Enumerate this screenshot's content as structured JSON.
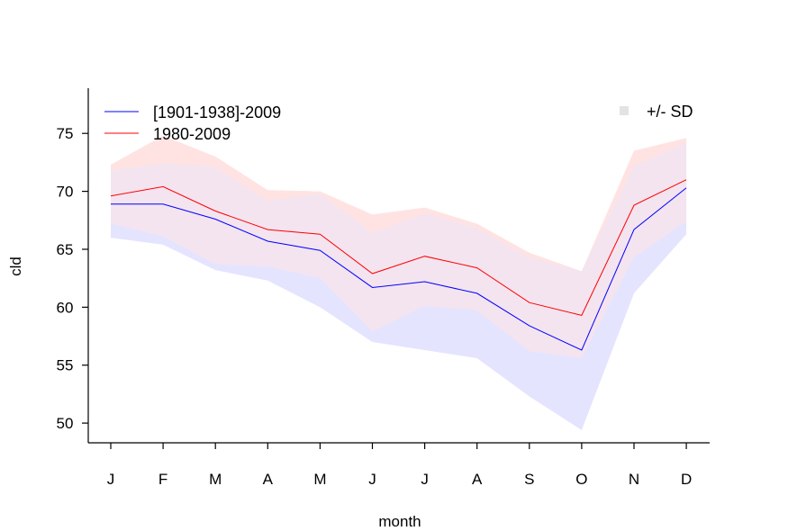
{
  "chart_data": {
    "type": "line",
    "title": "",
    "xlabel": "month",
    "ylabel": "cld",
    "categories": [
      "J",
      "F",
      "M",
      "A",
      "M",
      "J",
      "J",
      "A",
      "S",
      "O",
      "N",
      "D"
    ],
    "ylim": [
      48.3,
      78.9
    ],
    "yticks": [
      50,
      55,
      60,
      65,
      70,
      75
    ],
    "grid": false,
    "series": [
      {
        "name": "[1901-1938]-2009",
        "color": "#0000ff",
        "band_color": "#e4e4ff",
        "values": [
          68.9,
          68.9,
          67.6,
          65.7,
          64.9,
          61.7,
          62.2,
          61.2,
          58.4,
          56.3,
          66.7,
          70.3
        ],
        "sd_upper": [
          71.8,
          72.4,
          72.1,
          69.2,
          69.8,
          66.4,
          68.1,
          66.8,
          64.3,
          63.1,
          72.2,
          74.2
        ],
        "sd_lower": [
          66.0,
          65.4,
          63.2,
          62.3,
          60.0,
          57.0,
          56.3,
          55.6,
          52.3,
          49.4,
          61.2,
          66.3
        ]
      },
      {
        "name": "1980-2009",
        "color": "#ff0000",
        "band_color": "#ffe3e3",
        "values": [
          69.6,
          70.4,
          68.3,
          66.7,
          66.3,
          62.9,
          64.4,
          63.4,
          60.4,
          59.3,
          68.8,
          71.0
        ],
        "sd_upper": [
          72.3,
          74.8,
          73.0,
          70.1,
          70.0,
          68.0,
          68.6,
          67.2,
          64.7,
          63.1,
          73.5,
          74.6
        ],
        "sd_lower": [
          67.2,
          66.1,
          63.7,
          63.5,
          62.5,
          57.9,
          60.1,
          59.7,
          56.2,
          55.6,
          64.3,
          67.4
        ]
      }
    ],
    "legend": {
      "position": "top-left",
      "entries": [
        "[1901-1938]-2009",
        "1980-2009"
      ]
    },
    "sd_legend": {
      "position": "top-right",
      "label": "+/- SD",
      "color": "#e3e3e3"
    }
  }
}
